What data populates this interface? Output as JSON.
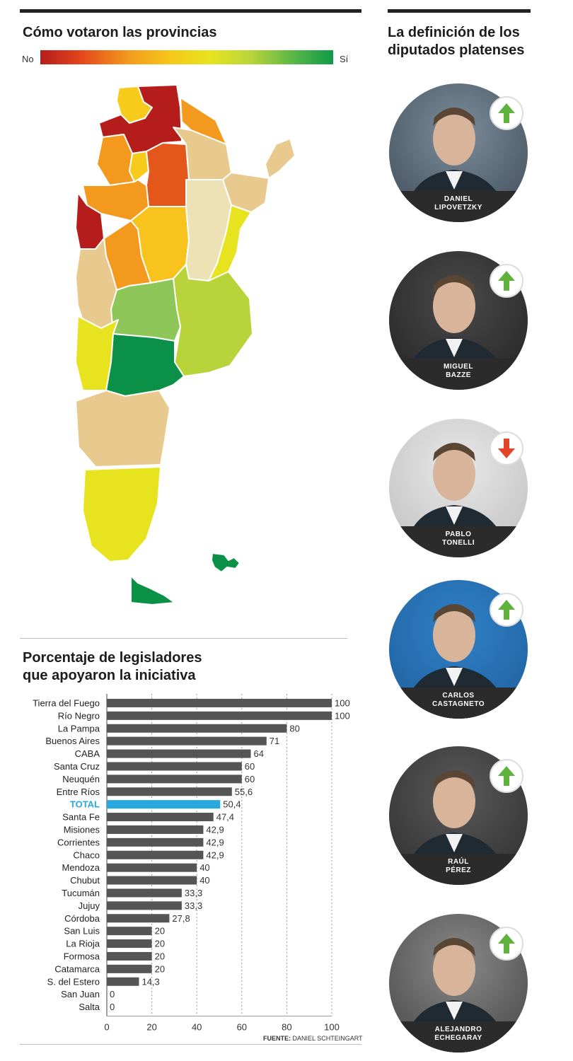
{
  "map_section": {
    "title": "Cómo votaron las provincias",
    "legend_low": "No",
    "legend_high": "Sí"
  },
  "deputies_section": {
    "title_line1": "La definición de los",
    "title_line2": "diputados platenses",
    "deputies": [
      {
        "first": "DANIEL",
        "last": "LIPOVETZKY",
        "vote": "up",
        "arrow_color": "#5fb33c"
      },
      {
        "first": "MIGUEL",
        "last": "BAZZE",
        "vote": "up",
        "arrow_color": "#5fb33c"
      },
      {
        "first": "PABLO",
        "last": "TONELLI",
        "vote": "down",
        "arrow_color": "#e2452b"
      },
      {
        "first": "CARLOS",
        "last": "CASTAGNETO",
        "vote": "up",
        "arrow_color": "#5fb33c"
      },
      {
        "first": "RAÚL",
        "last": "PÉREZ",
        "vote": "up",
        "arrow_color": "#5fb33c"
      },
      {
        "first": "ALEJANDRO",
        "last": "ECHEGARAY",
        "vote": "up",
        "arrow_color": "#5fb33c"
      }
    ]
  },
  "chart_data": {
    "type": "bar",
    "orientation": "horizontal",
    "title_line1": "Porcentaje de legisladores",
    "title_line2": "que apoyaron la iniciativa",
    "categories": [
      "Tierra del Fuego",
      "Río Negro",
      "La Pampa",
      "Buenos Aires",
      "CABA",
      "Santa Cruz",
      "Neuquén",
      "Entre Ríos",
      "TOTAL",
      "Santa Fe",
      "Misiones",
      "Corrientes",
      "Chaco",
      "Mendoza",
      "Chubut",
      "Tucumán",
      "Jujuy",
      "Córdoba",
      "San Luis",
      "La Rioja",
      "Formosa",
      "Catamarca",
      "S. del Estero",
      "San Juan",
      "Salta"
    ],
    "values": [
      100,
      100,
      80,
      71,
      64,
      60,
      60,
      55.6,
      50.4,
      47.4,
      42.9,
      42.9,
      42.9,
      40,
      40,
      33.3,
      33.3,
      27.8,
      20,
      20,
      20,
      20,
      14.3,
      0,
      0
    ],
    "value_labels": [
      "100",
      "100",
      "80",
      "71",
      "64",
      "60",
      "60",
      "55,6",
      "50,4",
      "47,4",
      "42,9",
      "42,9",
      "42,9",
      "40",
      "40",
      "33,3",
      "33,3",
      "27,8",
      "20",
      "20",
      "20",
      "20",
      "14,3",
      "0",
      "0"
    ],
    "highlight_category": "TOTAL",
    "bar_color": "#555555",
    "highlight_color": "#29a8e0",
    "xlim": [
      0,
      100
    ],
    "xticks": [
      0,
      20,
      40,
      60,
      80,
      100
    ],
    "grid": true
  },
  "footer": {
    "source_label": "FUENTE:",
    "source_name": "DANIEL SCHTEINGART"
  }
}
